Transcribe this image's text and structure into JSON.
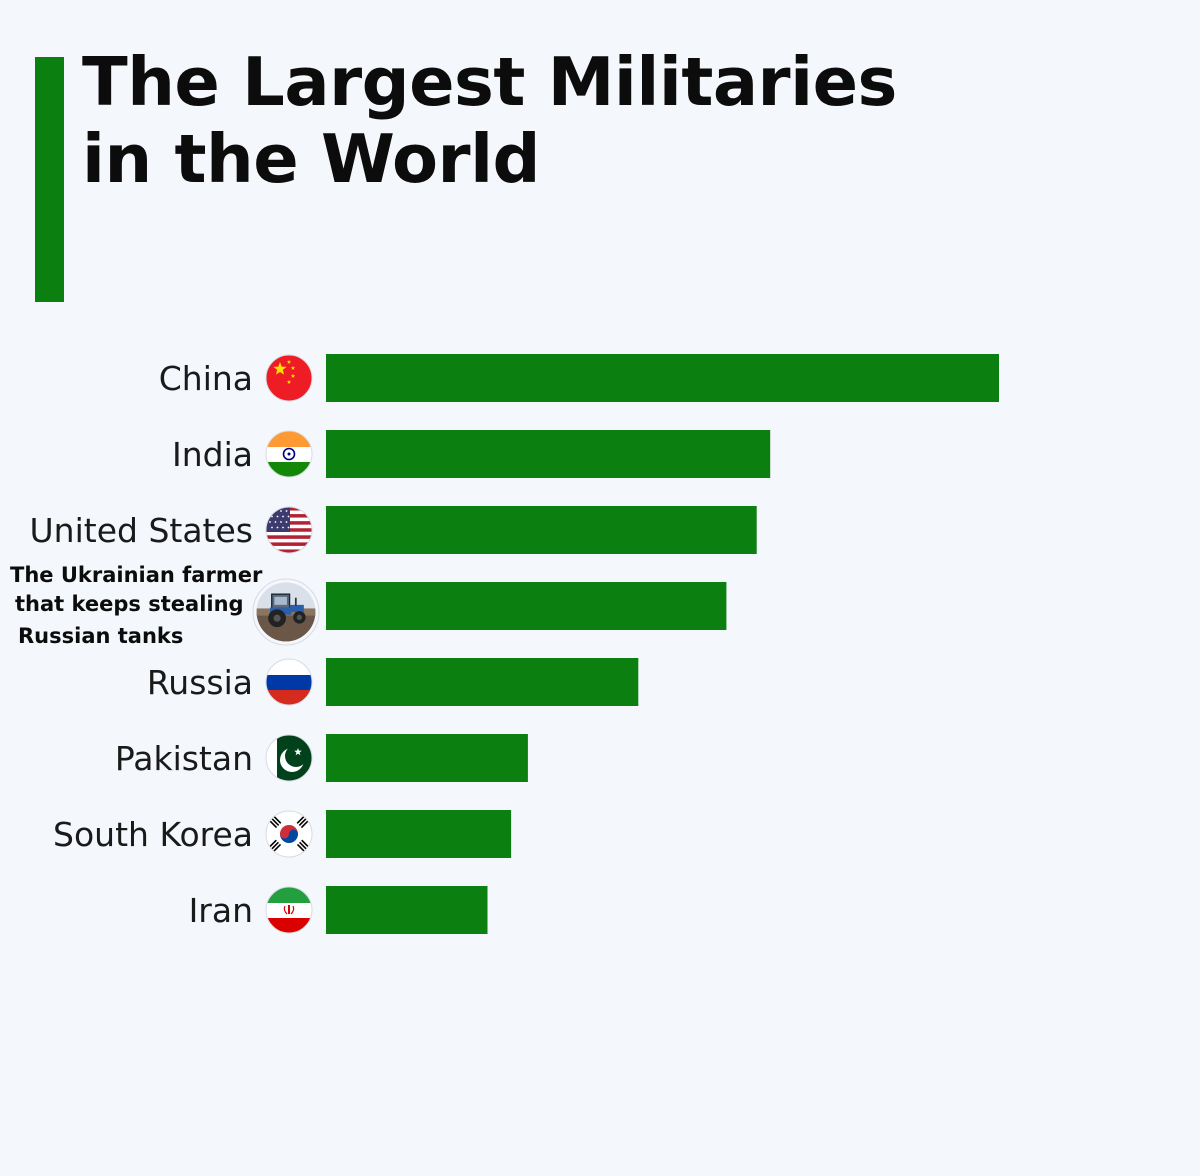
{
  "chart_data": {
    "type": "bar",
    "orientation": "horizontal",
    "title": "The Largest Militaries in the World",
    "title_lines": [
      "The Largest Militaries",
      "in the World"
    ],
    "categories": [
      "China",
      "India",
      "United States",
      "The Ukrainian farmer that keeps stealing Russian tanks",
      "Russia",
      "Pakistan",
      "South Korea",
      "Iran"
    ],
    "category_lines": [
      [
        "China"
      ],
      [
        "India"
      ],
      [
        "United States"
      ],
      [
        "The Ukrainian farmer",
        "that keeps stealing",
        "Russian tanks"
      ],
      [
        "Russia"
      ],
      [
        "Pakistan"
      ],
      [
        "South Korea"
      ],
      [
        "Iran"
      ]
    ],
    "icons": [
      "china-flag-icon",
      "india-flag-icon",
      "us-flag-icon",
      "tractor-photo-icon",
      "russia-flag-icon",
      "pakistan-flag-icon",
      "south-korea-flag-icon",
      "iran-flag-icon"
    ],
    "values": [
      100,
      66,
      64,
      59.5,
      46.4,
      30,
      27.5,
      24
    ],
    "xlim": [
      0,
      100
    ],
    "grid": false,
    "legend": "none",
    "bar_color": "#0b7f10"
  },
  "colors": {
    "accent": "#0b7f10",
    "background": "#f4f7fc",
    "text": "#0c0c0c"
  }
}
